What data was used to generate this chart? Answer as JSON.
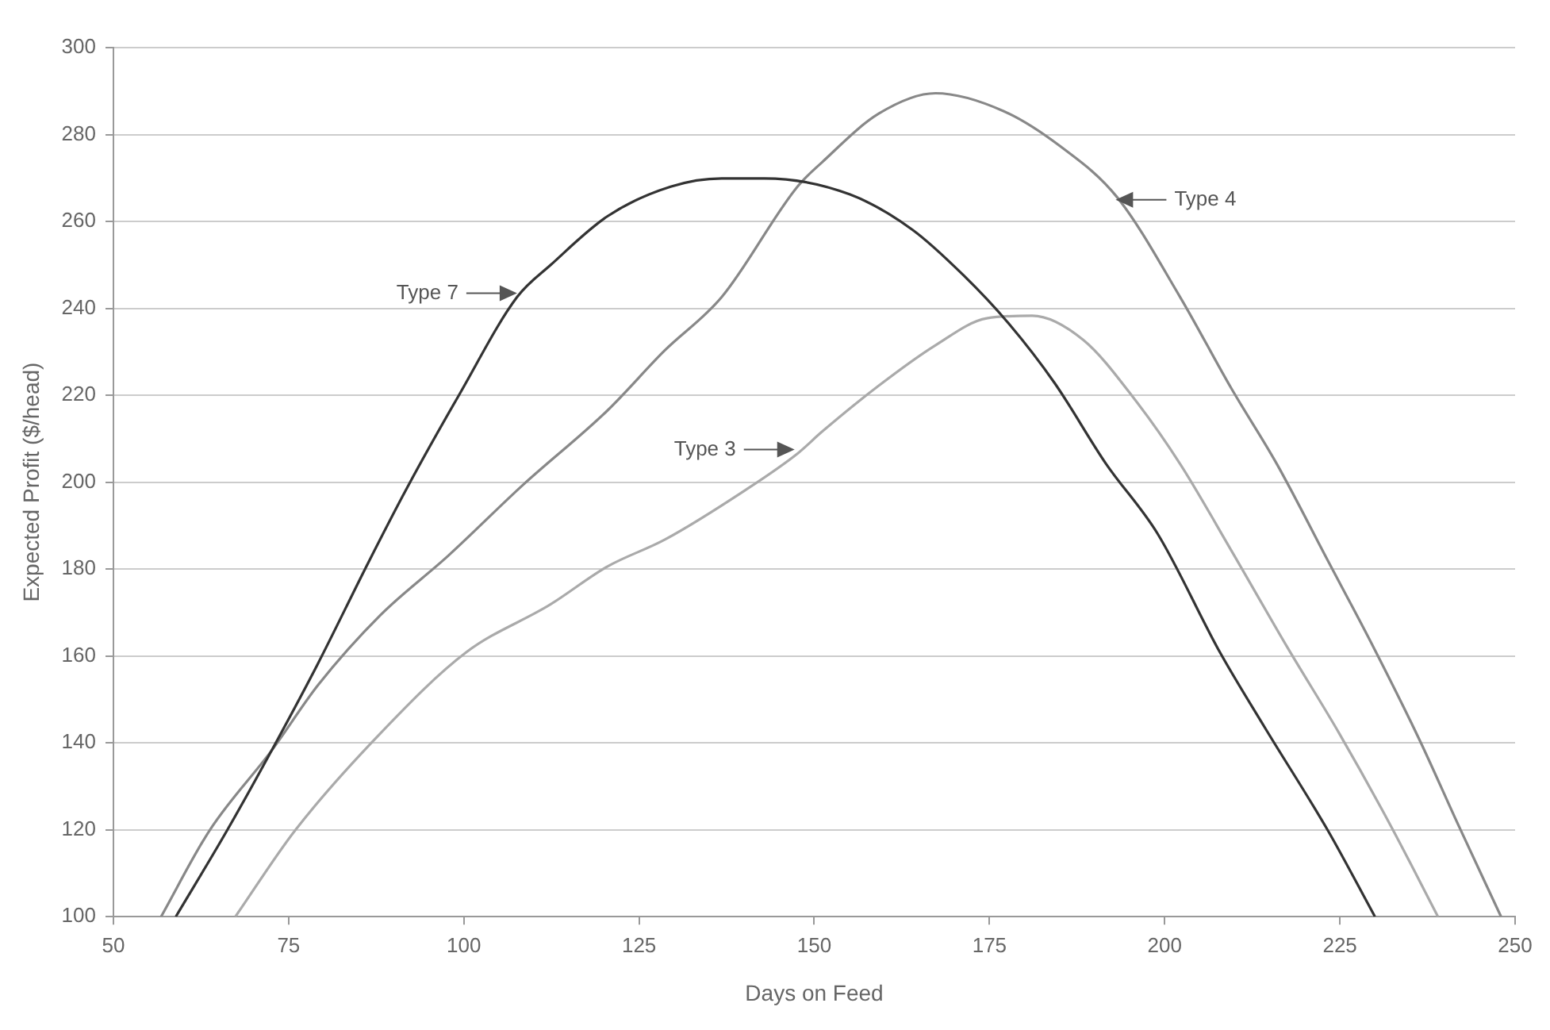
{
  "chart_data": {
    "type": "line",
    "xlabel": "Days on Feed",
    "ylabel": "Expected Profit ($/head)",
    "xlim": [
      50,
      250
    ],
    "xticks": [
      50,
      75,
      100,
      125,
      150,
      175,
      200,
      225,
      250
    ],
    "ylim": [
      100,
      300
    ],
    "yticks": [
      100,
      120,
      140,
      160,
      180,
      200,
      220,
      240,
      260,
      280,
      300
    ],
    "grid": "y",
    "marker": "none",
    "line_style": "solid",
    "series": [
      {
        "color": "#333333",
        "x": [
          58.9,
          66.2,
          73.5,
          79.2,
          86.5,
          92.1,
          99.4,
          107.6,
          112.4,
          120.5,
          129.5,
          136.8,
          142.9,
          155.1,
          164,
          171.3,
          177.8,
          184.3,
          191.6,
          199,
          207.9,
          214.3,
          223.3,
          230
        ],
        "values": [
          100,
          119.8,
          141,
          158.3,
          181.9,
          199.3,
          220.3,
          242.6,
          250,
          261.2,
          268,
          269.9,
          269.9,
          266.2,
          258.1,
          247.6,
          236.4,
          222.8,
          204.3,
          188.1,
          160.8,
          143.5,
          119.8,
          100
        ]
      },
      {
        "color": "#888888",
        "x": [
          56.8,
          63.7,
          72.7,
          79.2,
          88.1,
          97.8,
          108.4,
          120.5,
          128.6,
          136.8,
          147.6,
          151.1,
          159.2,
          167.3,
          177,
          185.1,
          193.2,
          202.2,
          209.5,
          216,
          223.3,
          229.8,
          236.3,
          241.9,
          248
        ],
        "values": [
          100,
          119.8,
          138.5,
          153.3,
          169.4,
          183.1,
          199.3,
          216.5,
          230.2,
          242.6,
          268,
          273.6,
          284.8,
          289.5,
          285.4,
          277.3,
          265.6,
          242.6,
          221.6,
          204.2,
          181.9,
          162,
          140.9,
          121.1,
          100
        ]
      },
      {
        "color": "#aaaaaa",
        "x": [
          67.4,
          75.9,
          88.1,
          100.3,
          112.4,
          120.5,
          128.7,
          140,
          147.7,
          151.1,
          159.2,
          167.3,
          174.6,
          181.1,
          188.4,
          195.7,
          202.2,
          209.5,
          217.5,
          224.9,
          232.2,
          239
        ],
        "values": [
          100,
          119.8,
          142.2,
          160.8,
          171.9,
          180.6,
          186.8,
          198,
          206.7,
          211.6,
          222.2,
          231.5,
          237.7,
          238.3,
          232.7,
          219.1,
          204.2,
          184.3,
          162,
          142.2,
          121.1,
          100
        ]
      }
    ],
    "annotations": [
      {
        "text": "Type 7",
        "x": 107.6,
        "y": 243.5
      },
      {
        "text": "Type 4",
        "x": 193,
        "y": 265
      },
      {
        "text": "Type 3",
        "x": 147.2,
        "y": 207.5
      }
    ]
  }
}
